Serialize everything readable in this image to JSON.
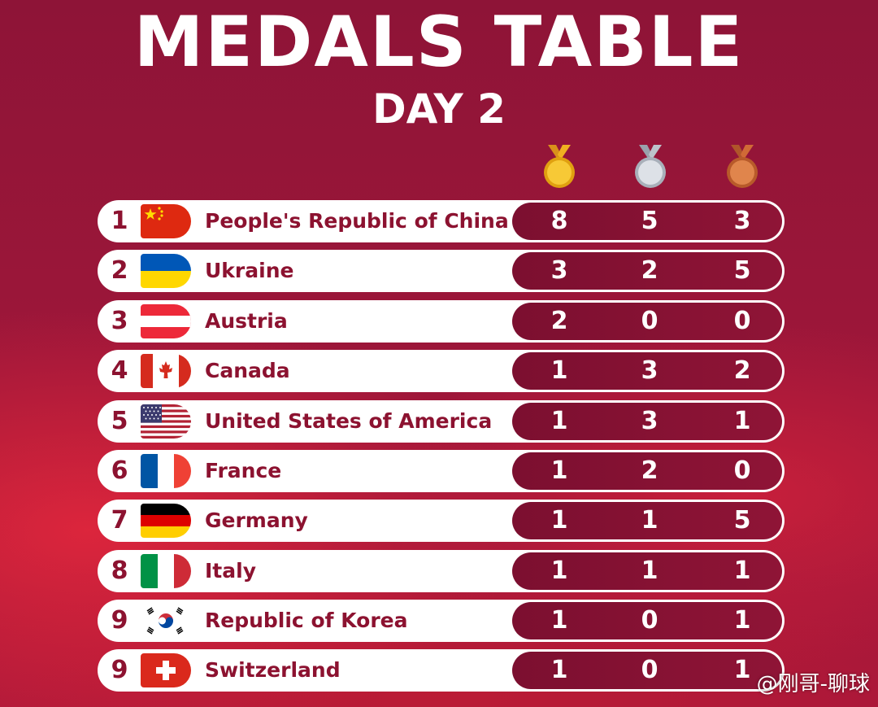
{
  "header": {
    "title": "MEDALS TABLE",
    "subtitle": "DAY 2"
  },
  "medals": [
    {
      "name": "gold",
      "color": "#f2b51d",
      "ring": "#e0a010"
    },
    {
      "name": "silver",
      "color": "#cfd4dc",
      "ring": "#a9b0ba"
    },
    {
      "name": "bronze",
      "color": "#d8743c",
      "ring": "#b85a2a"
    }
  ],
  "rows": [
    {
      "rank": "1",
      "country": "People's Republic of China",
      "flag": "china-flag",
      "gold": "8",
      "silver": "5",
      "bronze": "3"
    },
    {
      "rank": "2",
      "country": "Ukraine",
      "flag": "ukraine-flag",
      "gold": "3",
      "silver": "2",
      "bronze": "5"
    },
    {
      "rank": "3",
      "country": "Austria",
      "flag": "austria-flag",
      "gold": "2",
      "silver": "0",
      "bronze": "0"
    },
    {
      "rank": "4",
      "country": "Canada",
      "flag": "canada-flag",
      "gold": "1",
      "silver": "3",
      "bronze": "2"
    },
    {
      "rank": "5",
      "country": "United States of America",
      "flag": "usa-flag",
      "gold": "1",
      "silver": "3",
      "bronze": "1"
    },
    {
      "rank": "6",
      "country": "France",
      "flag": "france-flag",
      "gold": "1",
      "silver": "2",
      "bronze": "0"
    },
    {
      "rank": "7",
      "country": "Germany",
      "flag": "germany-flag",
      "gold": "1",
      "silver": "1",
      "bronze": "5"
    },
    {
      "rank": "8",
      "country": "Italy",
      "flag": "italy-flag",
      "gold": "1",
      "silver": "1",
      "bronze": "1"
    },
    {
      "rank": "9",
      "country": "Republic of Korea",
      "flag": "korea-flag",
      "gold": "1",
      "silver": "0",
      "bronze": "1"
    },
    {
      "rank": "9",
      "country": "Switzerland",
      "flag": "switzerland-flag",
      "gold": "1",
      "silver": "0",
      "bronze": "1"
    }
  ],
  "watermark": "@刚哥-聊球"
}
